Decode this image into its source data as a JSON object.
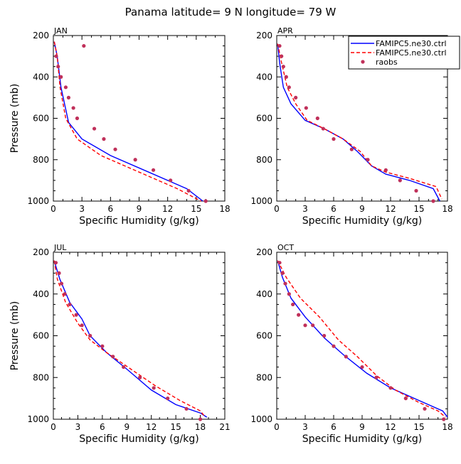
{
  "figure_title": "Panama   latitude=  9 N longitude=  79 W",
  "legend": {
    "entries": [
      {
        "label": "FAMIPC5.ne30.ctrl",
        "color": "#0000ff",
        "style": "solid"
      },
      {
        "label": "FAMIPC5.ne30.ctrl",
        "color": "#ff0000",
        "style": "dashed"
      },
      {
        "label": "raobs",
        "color": "#c0305a",
        "style": "marker"
      }
    ]
  },
  "colors": {
    "model_solid": "#0000ff",
    "model_dashed": "#ff0000",
    "raobs": "#c0305a"
  },
  "chart_data": [
    {
      "type": "line",
      "panel": "JAN",
      "title": "JAN",
      "xlabel": "Specific Humidity (g/kg)",
      "ylabel": "Pressure (mb)",
      "xlim": [
        0,
        18
      ],
      "ylim": [
        1000,
        200
      ],
      "xticks": [
        0,
        3,
        6,
        9,
        12,
        15,
        18
      ],
      "yticks": [
        200,
        400,
        600,
        800,
        1000
      ],
      "series": [
        {
          "name": "FAMIPC5.ne30.ctrl",
          "style": "solid",
          "color": "#0000ff",
          "x": [
            0.1,
            0.4,
            0.8,
            1.6,
            3.0,
            6.0,
            10.0,
            14.0,
            15.7
          ],
          "y": [
            230,
            300,
            450,
            620,
            700,
            780,
            860,
            940,
            1000
          ]
        },
        {
          "name": "FAMIPC5.ne30.ctrl",
          "style": "dashed",
          "color": "#ff0000",
          "x": [
            0.1,
            0.4,
            0.7,
            1.3,
            2.5,
            5.0,
            9.0,
            13.0,
            15.5
          ],
          "y": [
            230,
            300,
            450,
            600,
            700,
            780,
            860,
            940,
            1000
          ]
        },
        {
          "name": "raobs",
          "style": "marker",
          "color": "#c0305a",
          "x": [
            0.3,
            0.5,
            0.8,
            1.3,
            1.6,
            2.1,
            2.5,
            3.2,
            4.3,
            5.3,
            6.5,
            8.6,
            10.5,
            12.3,
            14.2,
            16.0
          ],
          "y": [
            300,
            350,
            400,
            450,
            500,
            550,
            600,
            250,
            650,
            700,
            750,
            800,
            850,
            900,
            950,
            1000
          ]
        }
      ]
    },
    {
      "type": "line",
      "panel": "APR",
      "title": "APR",
      "xlabel": "Specific Humidity (g/kg)",
      "ylabel": "",
      "xlim": [
        0,
        18
      ],
      "ylim": [
        1000,
        200
      ],
      "xticks": [
        0,
        3,
        6,
        9,
        12,
        15,
        18
      ],
      "yticks": [
        200,
        400,
        600,
        800,
        1000
      ],
      "series": [
        {
          "name": "FAMIPC5.ne30.ctrl",
          "style": "solid",
          "color": "#0000ff",
          "x": [
            0.1,
            0.3,
            0.7,
            1.5,
            3.0,
            5.0,
            7.0,
            8.5,
            10.0,
            11.5,
            14.0,
            16.5,
            17.2
          ],
          "y": [
            240,
            330,
            450,
            530,
            610,
            650,
            700,
            760,
            830,
            870,
            900,
            940,
            1000
          ]
        },
        {
          "name": "FAMIPC5.ne30.ctrl",
          "style": "dashed",
          "color": "#ff0000",
          "x": [
            0.1,
            0.5,
            1.1,
            2.0,
            3.2,
            5.0,
            7.0,
            8.8,
            10.0,
            11.5,
            14.0,
            16.8,
            17.4
          ],
          "y": [
            240,
            330,
            450,
            530,
            610,
            650,
            700,
            760,
            830,
            860,
            890,
            930,
            990
          ]
        },
        {
          "name": "raobs",
          "style": "marker",
          "color": "#c0305a",
          "x": [
            0.3,
            0.5,
            0.7,
            1.0,
            1.3,
            2.0,
            3.1,
            4.3,
            4.9,
            6.0,
            7.9,
            9.6,
            11.5,
            13.0,
            14.7,
            16.5
          ],
          "y": [
            250,
            300,
            350,
            400,
            450,
            500,
            550,
            600,
            650,
            700,
            750,
            800,
            850,
            900,
            950,
            1000
          ]
        }
      ]
    },
    {
      "type": "line",
      "panel": "JUL",
      "title": "JUL",
      "xlabel": "Specific Humidity (g/kg)",
      "ylabel": "Pressure (mb)",
      "xlim": [
        0,
        21
      ],
      "ylim": [
        1000,
        200
      ],
      "xticks": [
        0,
        3,
        6,
        9,
        12,
        15,
        18,
        21
      ],
      "yticks": [
        200,
        400,
        600,
        800,
        1000
      ],
      "series": [
        {
          "name": "FAMIPC5.ne30.ctrl",
          "style": "solid",
          "color": "#0000ff",
          "x": [
            0.1,
            0.8,
            2.0,
            3.5,
            4.5,
            6.5,
            9.0,
            12.0,
            15.0,
            18.0,
            18.8
          ],
          "y": [
            240,
            330,
            440,
            520,
            600,
            680,
            760,
            860,
            930,
            970,
            990
          ]
        },
        {
          "name": "FAMIPC5.ne30.ctrl",
          "style": "dashed",
          "color": "#ff0000",
          "x": [
            0.1,
            0.5,
            1.5,
            3.0,
            4.5,
            6.5,
            9.5,
            12.5,
            15.5,
            18.0,
            18.6
          ],
          "y": [
            240,
            330,
            440,
            540,
            620,
            680,
            760,
            840,
            910,
            960,
            990
          ]
        },
        {
          "name": "raobs",
          "style": "marker",
          "color": "#c0305a",
          "x": [
            0.3,
            0.7,
            1.0,
            1.4,
            2.0,
            2.8,
            3.5,
            4.5,
            6.0,
            7.3,
            8.6,
            10.6,
            12.3,
            14.0,
            16.3,
            18.0
          ],
          "y": [
            250,
            300,
            350,
            400,
            450,
            500,
            550,
            600,
            650,
            700,
            750,
            800,
            850,
            900,
            950,
            1000
          ]
        }
      ]
    },
    {
      "type": "line",
      "panel": "OCT",
      "title": "OCT",
      "xlabel": "Specific Humidity (g/kg)",
      "ylabel": "",
      "xlim": [
        0,
        18
      ],
      "ylim": [
        1000,
        200
      ],
      "xticks": [
        0,
        3,
        6,
        9,
        12,
        15,
        18
      ],
      "yticks": [
        200,
        400,
        600,
        800,
        1000
      ],
      "series": [
        {
          "name": "FAMIPC5.ne30.ctrl",
          "style": "solid",
          "color": "#0000ff",
          "x": [
            0.1,
            0.6,
            1.5,
            3.0,
            5.0,
            7.0,
            9.5,
            12.0,
            15.0,
            17.5,
            18.0
          ],
          "y": [
            240,
            320,
            420,
            510,
            610,
            690,
            780,
            850,
            910,
            960,
            990
          ]
        },
        {
          "name": "FAMIPC5.ne30.ctrl",
          "style": "dashed",
          "color": "#ff0000",
          "x": [
            0.1,
            1.0,
            2.5,
            4.5,
            6.5,
            8.5,
            10.5,
            12.5,
            15.0,
            17.0,
            17.8
          ],
          "y": [
            240,
            320,
            420,
            510,
            620,
            700,
            790,
            860,
            920,
            960,
            990
          ]
        },
        {
          "name": "raobs",
          "style": "marker",
          "color": "#c0305a",
          "x": [
            0.3,
            0.6,
            0.9,
            1.3,
            1.7,
            2.3,
            3.0,
            3.8,
            5.0,
            6.0,
            7.3,
            9.0,
            10.5,
            12.0,
            13.6,
            15.6,
            17.6
          ],
          "y": [
            250,
            300,
            350,
            400,
            450,
            500,
            550,
            550,
            600,
            650,
            700,
            750,
            800,
            850,
            900,
            950,
            1000
          ]
        }
      ]
    }
  ]
}
